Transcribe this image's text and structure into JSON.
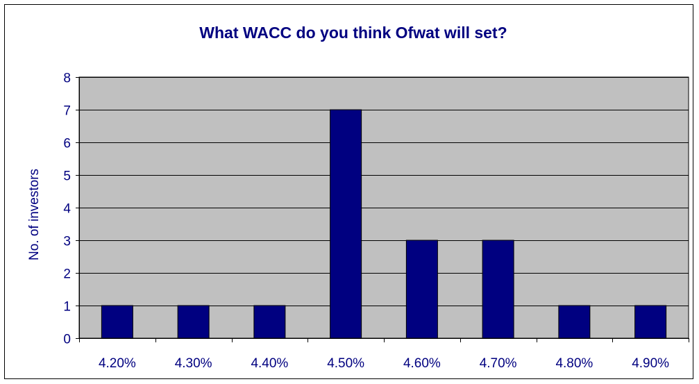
{
  "chart_data": {
    "type": "bar",
    "title": "What WACC do you think Ofwat will set?",
    "xlabel": "",
    "ylabel": "No. of investors",
    "categories": [
      "4.20%",
      "4.30%",
      "4.40%",
      "4.50%",
      "4.60%",
      "4.70%",
      "4.80%",
      "4.90%"
    ],
    "values": [
      1,
      1,
      1,
      7,
      3,
      3,
      1,
      1
    ],
    "ylim": [
      0,
      8
    ],
    "yticks": [
      "0",
      "1",
      "2",
      "3",
      "4",
      "5",
      "6",
      "7",
      "8"
    ],
    "grid": true,
    "legend": "none"
  },
  "colors": {
    "bar_fill": "#000080",
    "bar_stroke": "#000000",
    "plot_background": "#c0c0c0",
    "gridline": "#000000",
    "text": "#000080",
    "tick_label": "#000080"
  }
}
